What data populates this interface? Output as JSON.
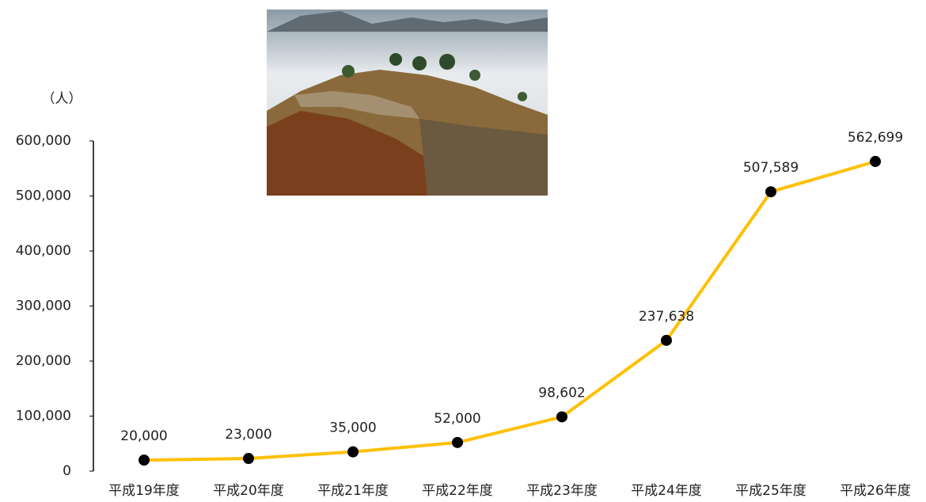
{
  "chart_data": {
    "type": "line",
    "y_axis_label": "（人）",
    "categories": [
      "平成19年度",
      "平成20年度",
      "平成21年度",
      "平成22年度",
      "平成23年度",
      "平成24年度",
      "平成25年度",
      "平成26年度"
    ],
    "series": [
      {
        "color": "#ffc000",
        "values": [
          20000,
          23000,
          35000,
          52000,
          98602,
          237638,
          507589,
          562699
        ],
        "value_labels": [
          "20,000",
          "23,000",
          "35,000",
          "52,000",
          "98,602",
          "237,638",
          "507,589",
          "562,699"
        ]
      }
    ],
    "marker_color": "#000000",
    "ylim": [
      0,
      600000
    ],
    "yticks": [
      0,
      {
        "value": 100000,
        "label": "100,000"
      },
      {
        "value": 200000,
        "label": "200,000"
      },
      {
        "value": 300000,
        "label": "300,000"
      },
      {
        "value": 400000,
        "label": "400,000"
      },
      {
        "value": 500000,
        "label": "500,000"
      },
      {
        "value": 600000,
        "label": "600,000"
      }
    ]
  }
}
